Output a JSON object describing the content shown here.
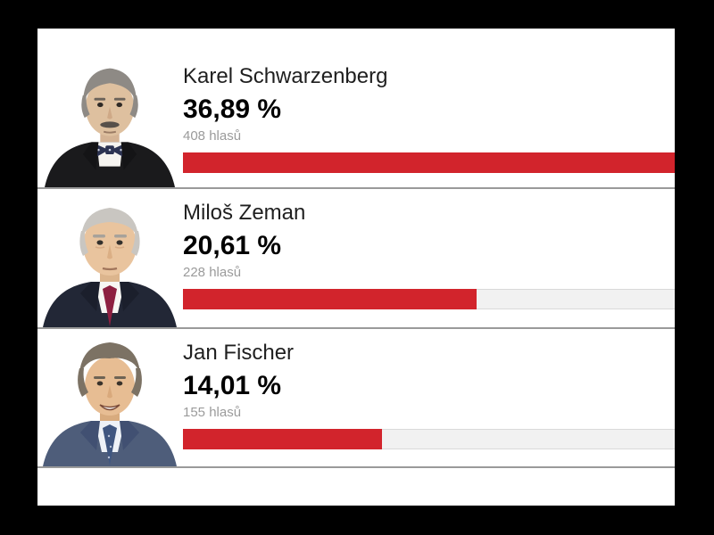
{
  "page": {
    "page_background": "#000000",
    "panel_background": "#ffffff"
  },
  "colors": {
    "page_background": "#000000",
    "panel_background": "#ffffff",
    "bar_fill": "#d2242c",
    "bar_track": "#f1f1f1",
    "bar_track_border": "#d9d9d9",
    "separator": "#9a9a9a",
    "name_text": "#1f1f1f",
    "percent_text": "#000000",
    "votes_text": "#9b9b9b"
  },
  "poll": {
    "candidates": [
      {
        "name": "Karel Schwarzenberg",
        "percent_label": "36,89 %",
        "percent_value": 36.89,
        "votes_label": "408 hlasů",
        "votes": 408,
        "bar_width_pct": 100
      },
      {
        "name": "Miloš Zeman",
        "percent_label": "20,61 %",
        "percent_value": 20.61,
        "votes_label": "228 hlasů",
        "votes": 228,
        "bar_width_pct": 59.7
      },
      {
        "name": "Jan Fischer",
        "percent_label": "14,01 %",
        "percent_value": 14.01,
        "votes_label": "155 hlasů",
        "votes": 155,
        "bar_width_pct": 40.5
      }
    ]
  },
  "chart_data": {
    "type": "bar",
    "orientation": "horizontal",
    "categories": [
      "Karel Schwarzenberg",
      "Miloš Zeman",
      "Jan Fischer"
    ],
    "series": [
      {
        "name": "percent",
        "values": [
          36.89,
          20.61,
          14.01
        ]
      },
      {
        "name": "votes",
        "values": [
          408,
          228,
          155
        ]
      }
    ],
    "value_labels": [
      "36,89 %",
      "20,61 %",
      "14,01 %"
    ],
    "vote_labels": [
      "408 hlasů",
      "228 hlasů",
      "155 hlasů"
    ],
    "bar_color": "#d2242c",
    "track_color": "#f1f1f1",
    "legend_position": "none",
    "grid": false
  }
}
